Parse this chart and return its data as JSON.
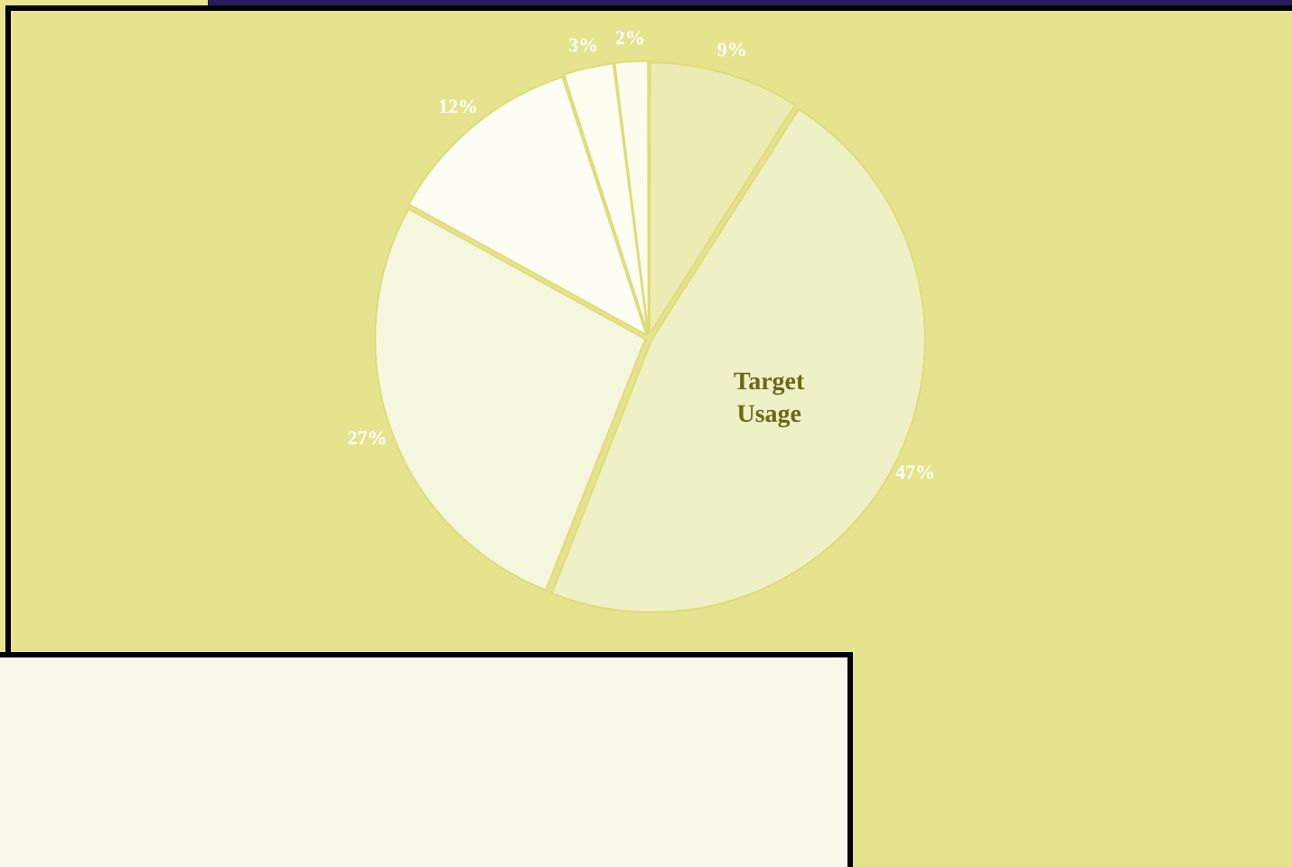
{
  "chart_data": {
    "type": "pie",
    "categories": [
      null,
      "Target Usage",
      null,
      null,
      null,
      null
    ],
    "values": [
      9,
      47,
      27,
      12,
      3,
      2
    ],
    "value_labels": [
      "9%",
      "47%",
      "27%",
      "12%",
      "3%",
      "2%"
    ],
    "colors": [
      "#ecebb3",
      "#f0f0c6",
      "#f6f6df",
      "#fdfdf4",
      "#fdfdf2",
      "#fcfcec"
    ],
    "legend": false
  }
}
